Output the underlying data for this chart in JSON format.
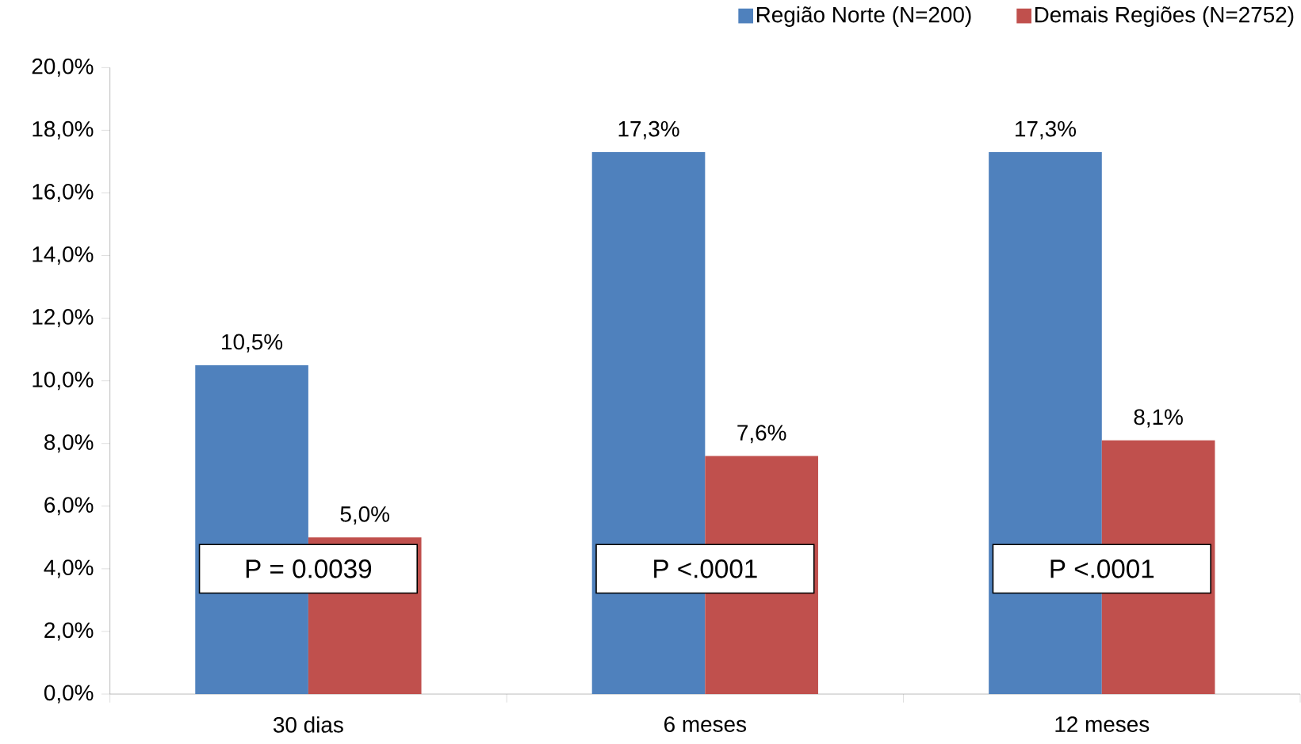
{
  "chart_data": {
    "type": "bar",
    "categories": [
      "30 dias",
      "6 meses",
      "12 meses"
    ],
    "series": [
      {
        "name": "Região Norte (N=200)",
        "color": "#4f81bd",
        "values": [
          10.5,
          17.3,
          17.3
        ],
        "value_labels": [
          "10,5%",
          "17,3%",
          "17,3%"
        ]
      },
      {
        "name": "Demais Regiões (N=2752)",
        "color": "#c0504d",
        "values": [
          5.0,
          7.6,
          8.1
        ],
        "value_labels": [
          "5,0%",
          "7,6%",
          "8,1%"
        ]
      }
    ],
    "ylim": [
      0,
      20
    ],
    "yticks": [
      {
        "value": 0,
        "label": "0,0%"
      },
      {
        "value": 2,
        "label": "2,0%"
      },
      {
        "value": 4,
        "label": "4,0%"
      },
      {
        "value": 6,
        "label": "6,0%"
      },
      {
        "value": 8,
        "label": "8,0%"
      },
      {
        "value": 10,
        "label": "10,0%"
      },
      {
        "value": 12,
        "label": "12,0%"
      },
      {
        "value": 14,
        "label": "14,0%"
      },
      {
        "value": 16,
        "label": "16,0%"
      },
      {
        "value": 18,
        "label": "18,0%"
      },
      {
        "value": 20,
        "label": "20,0%"
      }
    ],
    "annotations": [
      {
        "text": "P = 0.0039",
        "x": "30 dias",
        "y": 4
      },
      {
        "text": "P <.0001",
        "x": "6 meses",
        "y": 4
      },
      {
        "text": "P <.0001",
        "x": "12 meses",
        "y": 4
      }
    ],
    "legend": "top right"
  }
}
